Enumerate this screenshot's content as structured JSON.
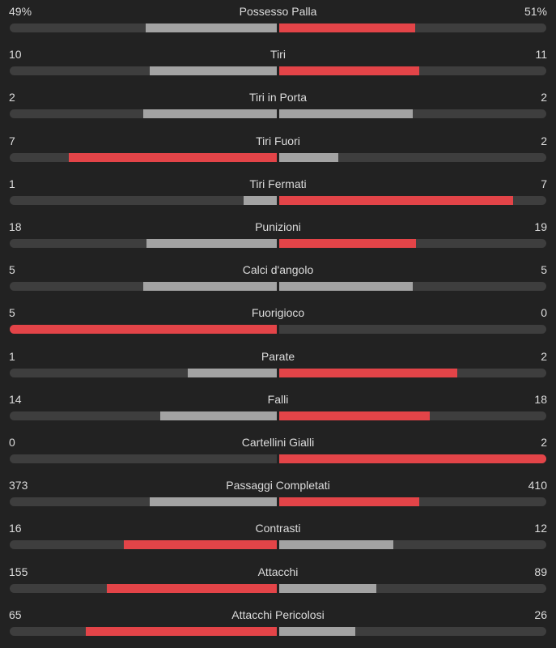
{
  "colors": {
    "background": "#222222",
    "track": "#3e3e3e",
    "leading": "#e34448",
    "trailing": "#a3a3a3",
    "text": "#dcdcdc"
  },
  "stats": [
    {
      "label": "Possesso Palla",
      "home": "49%",
      "away": "51%",
      "home_share": 0.49,
      "away_share": 0.51
    },
    {
      "label": "Tiri",
      "home": "10",
      "away": "11",
      "home_share": 0.4762,
      "away_share": 0.5238
    },
    {
      "label": "Tiri in Porta",
      "home": "2",
      "away": "2",
      "home_share": 0.5,
      "away_share": 0.5
    },
    {
      "label": "Tiri Fuori",
      "home": "7",
      "away": "2",
      "home_share": 0.7778,
      "away_share": 0.2222
    },
    {
      "label": "Tiri Fermati",
      "home": "1",
      "away": "7",
      "home_share": 0.125,
      "away_share": 0.875
    },
    {
      "label": "Punizioni",
      "home": "18",
      "away": "19",
      "home_share": 0.4865,
      "away_share": 0.5135
    },
    {
      "label": "Calci d'angolo",
      "home": "5",
      "away": "5",
      "home_share": 0.5,
      "away_share": 0.5
    },
    {
      "label": "Fuorigioco",
      "home": "5",
      "away": "0",
      "home_share": 1.0,
      "away_share": 0.0
    },
    {
      "label": "Parate",
      "home": "1",
      "away": "2",
      "home_share": 0.3333,
      "away_share": 0.6667
    },
    {
      "label": "Falli",
      "home": "14",
      "away": "18",
      "home_share": 0.4375,
      "away_share": 0.5625
    },
    {
      "label": "Cartellini Gialli",
      "home": "0",
      "away": "2",
      "home_share": 0.0,
      "away_share": 1.0
    },
    {
      "label": "Passaggi Completati",
      "home": "373",
      "away": "410",
      "home_share": 0.4764,
      "away_share": 0.5236
    },
    {
      "label": "Contrasti",
      "home": "16",
      "away": "12",
      "home_share": 0.5714,
      "away_share": 0.4286
    },
    {
      "label": "Attacchi",
      "home": "155",
      "away": "89",
      "home_share": 0.6352,
      "away_share": 0.3648
    },
    {
      "label": "Attacchi Pericolosi",
      "home": "65",
      "away": "26",
      "home_share": 0.7143,
      "away_share": 0.2857
    }
  ]
}
